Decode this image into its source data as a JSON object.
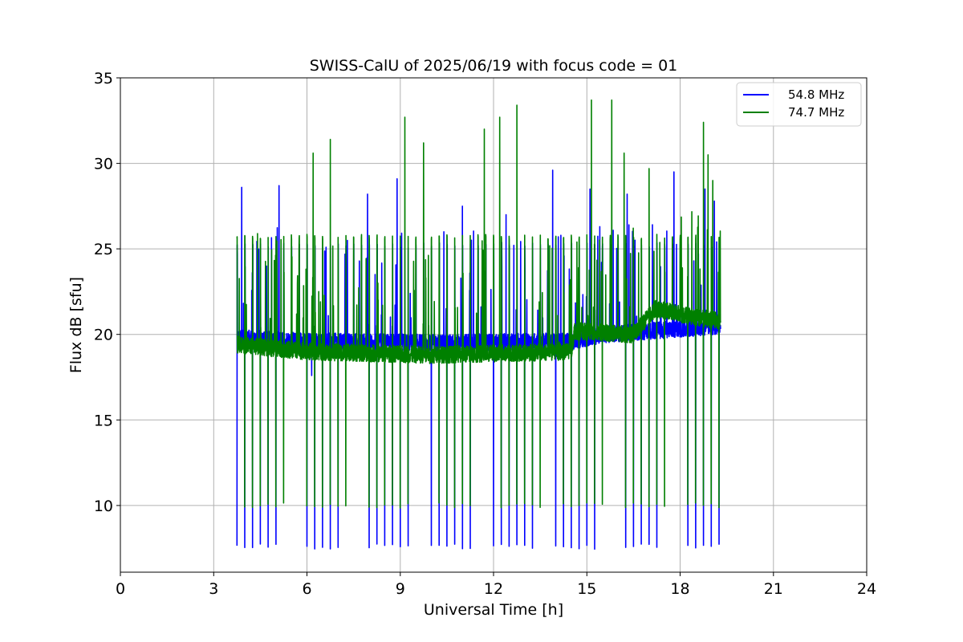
{
  "chart_data": {
    "type": "line",
    "title": "SWISS-CalU of 2025/06/19 with focus code = 01",
    "xlabel": "Universal Time [h]",
    "ylabel": "Flux dB [sfu]",
    "xlim": [
      0,
      24
    ],
    "ylim": [
      6.1,
      35
    ],
    "xticks": [
      0,
      3,
      6,
      9,
      12,
      15,
      18,
      21,
      24
    ],
    "yticks": [
      10,
      15,
      20,
      25,
      30,
      35
    ],
    "grid": true,
    "legend_position": "top-right",
    "x_range": [
      3.75,
      19.3
    ],
    "calibration_interval_h": 0.25,
    "series": [
      {
        "name": "54.8 MHz",
        "color": "#0000ff",
        "baseline": [
          [
            3.75,
            19.8
          ],
          [
            6.0,
            19.6
          ],
          [
            10.0,
            19.5
          ],
          [
            14.5,
            19.6
          ],
          [
            15.5,
            20.0
          ],
          [
            19.3,
            20.5
          ]
        ],
        "cal_low": 7.6,
        "cal_high": 25.2,
        "peaks": [
          [
            3.9,
            28.6
          ],
          [
            4.7,
            24.0
          ],
          [
            5.1,
            28.7
          ],
          [
            6.15,
            17.6
          ],
          [
            7.3,
            25.5
          ],
          [
            7.95,
            28.2
          ],
          [
            8.9,
            29.1
          ],
          [
            10.4,
            26.0
          ],
          [
            11.0,
            27.5
          ],
          [
            12.4,
            27.0
          ],
          [
            13.9,
            29.6
          ],
          [
            15.1,
            28.5
          ],
          [
            16.3,
            28.2
          ],
          [
            17.8,
            29.5
          ],
          [
            18.8,
            28.5
          ],
          [
            19.1,
            27.8
          ]
        ]
      },
      {
        "name": "74.7 MHz",
        "color": "#008000",
        "baseline": [
          [
            3.75,
            19.4
          ],
          [
            6.0,
            19.0
          ],
          [
            10.0,
            18.8
          ],
          [
            14.5,
            19.0
          ],
          [
            14.6,
            20.2
          ],
          [
            16.5,
            20.0
          ],
          [
            17.2,
            21.5
          ],
          [
            18.5,
            21.0
          ],
          [
            19.3,
            20.8
          ]
        ],
        "cal_low": 10.0,
        "cal_high": 25.7,
        "peaks": [
          [
            6.2,
            30.6
          ],
          [
            6.75,
            31.4
          ],
          [
            9.15,
            32.7
          ],
          [
            9.75,
            31.2
          ],
          [
            11.7,
            32.0
          ],
          [
            12.2,
            32.7
          ],
          [
            12.75,
            33.4
          ],
          [
            15.15,
            33.7
          ],
          [
            15.8,
            33.7
          ],
          [
            16.2,
            30.6
          ],
          [
            17.0,
            29.7
          ],
          [
            18.75,
            32.4
          ],
          [
            18.9,
            30.5
          ],
          [
            19.05,
            29.0
          ]
        ]
      }
    ]
  }
}
